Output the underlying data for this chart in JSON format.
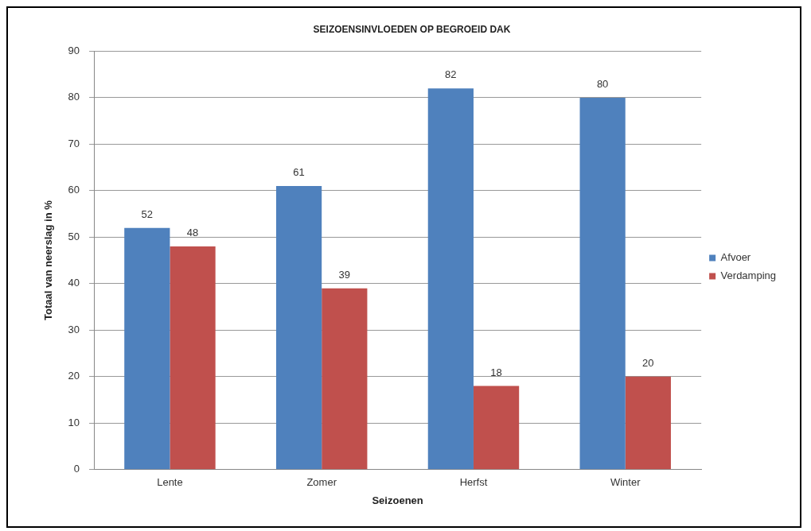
{
  "chart_data": {
    "type": "bar",
    "title": "SEIZOENSINVLOEDEN OP BEGROEID DAK",
    "xlabel": "Seizoenen",
    "ylabel": "Totaal van neerslag in %",
    "categories": [
      "Lente",
      "Zomer",
      "Herfst",
      "Winter"
    ],
    "series": [
      {
        "name": "Afvoer",
        "color": "#4f81bd",
        "values": [
          52,
          61,
          82,
          80
        ]
      },
      {
        "name": "Verdamping",
        "color": "#c0504d",
        "values": [
          48,
          39,
          18,
          20
        ]
      }
    ],
    "ylim": [
      0,
      90
    ],
    "yticks": [
      0,
      10,
      20,
      30,
      40,
      50,
      60,
      70,
      80,
      90
    ],
    "grid": "y",
    "legend": "right",
    "data_labels": true
  }
}
